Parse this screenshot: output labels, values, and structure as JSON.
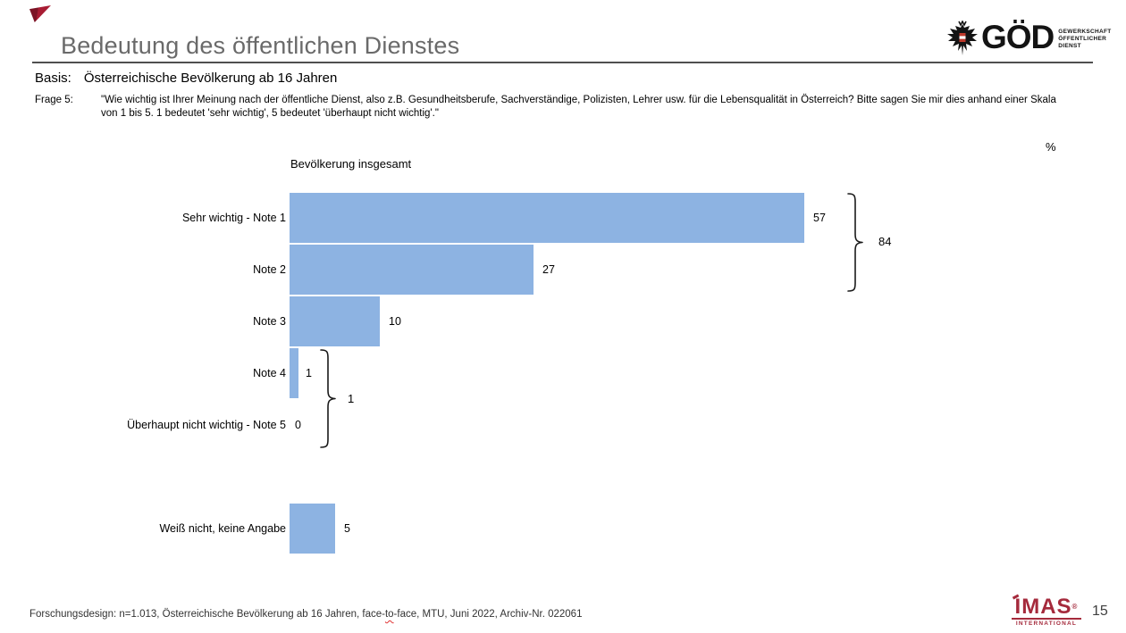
{
  "slide": {
    "title": "Bedeutung des öffentlichen Dienstes",
    "basis": {
      "label": "Basis:",
      "text": "Österreichische Bevölkerung ab 16 Jahren"
    },
    "frage": {
      "label": "Frage 5:",
      "text": "\"Wie wichtig ist Ihrer Meinung nach der öffentliche Dienst, also z.B. Gesundheitsberufe, Sachverständige, Polizisten, Lehrer usw. für die Lebensqualität in Österreich? Bitte sagen Sie mir dies anhand einer Skala von 1 bis 5. 1 bedeutet 'sehr wichtig', 5 bedeutet 'überhaupt nicht wichtig'.\""
    },
    "unit_label": "%",
    "footer": {
      "pre": "Forschungsdesign: n=1.013, Österreichische Bevölkerung ab 16 Jahren, face-",
      "misspelled": "to",
      "post": "-face, MTU, Juni 2022, Archiv-Nr. 022061"
    },
    "page_number": "15"
  },
  "logos": {
    "goed": {
      "acronym": "GÖD",
      "subtitle_lines": [
        "GEWERKSCHAFT",
        "ÖFFENTLICHER",
        "DIENST"
      ]
    },
    "imas": {
      "name": "IMAS",
      "registered": "®",
      "subtitle": "INTERNATIONAL"
    }
  },
  "chart_data": {
    "type": "bar",
    "orientation": "horizontal",
    "title": "Bevölkerung insgesamt",
    "unit": "%",
    "categories": [
      "Sehr wichtig - Note 1",
      "Note 2",
      "Note 3",
      "Note 4",
      "Überhaupt nicht wichtig - Note 5",
      "Weiß nicht, keine Angabe"
    ],
    "values": [
      57,
      27,
      10,
      1,
      0,
      5
    ],
    "xlim": [
      0,
      100
    ],
    "grid": false,
    "bar_color": "#8db3e2",
    "brackets": [
      {
        "label": "84",
        "covers": [
          "Sehr wichtig - Note 1",
          "Note 2"
        ]
      },
      {
        "label": "1",
        "covers": [
          "Note 4",
          "Überhaupt nicht wichtig - Note 5"
        ]
      }
    ]
  }
}
